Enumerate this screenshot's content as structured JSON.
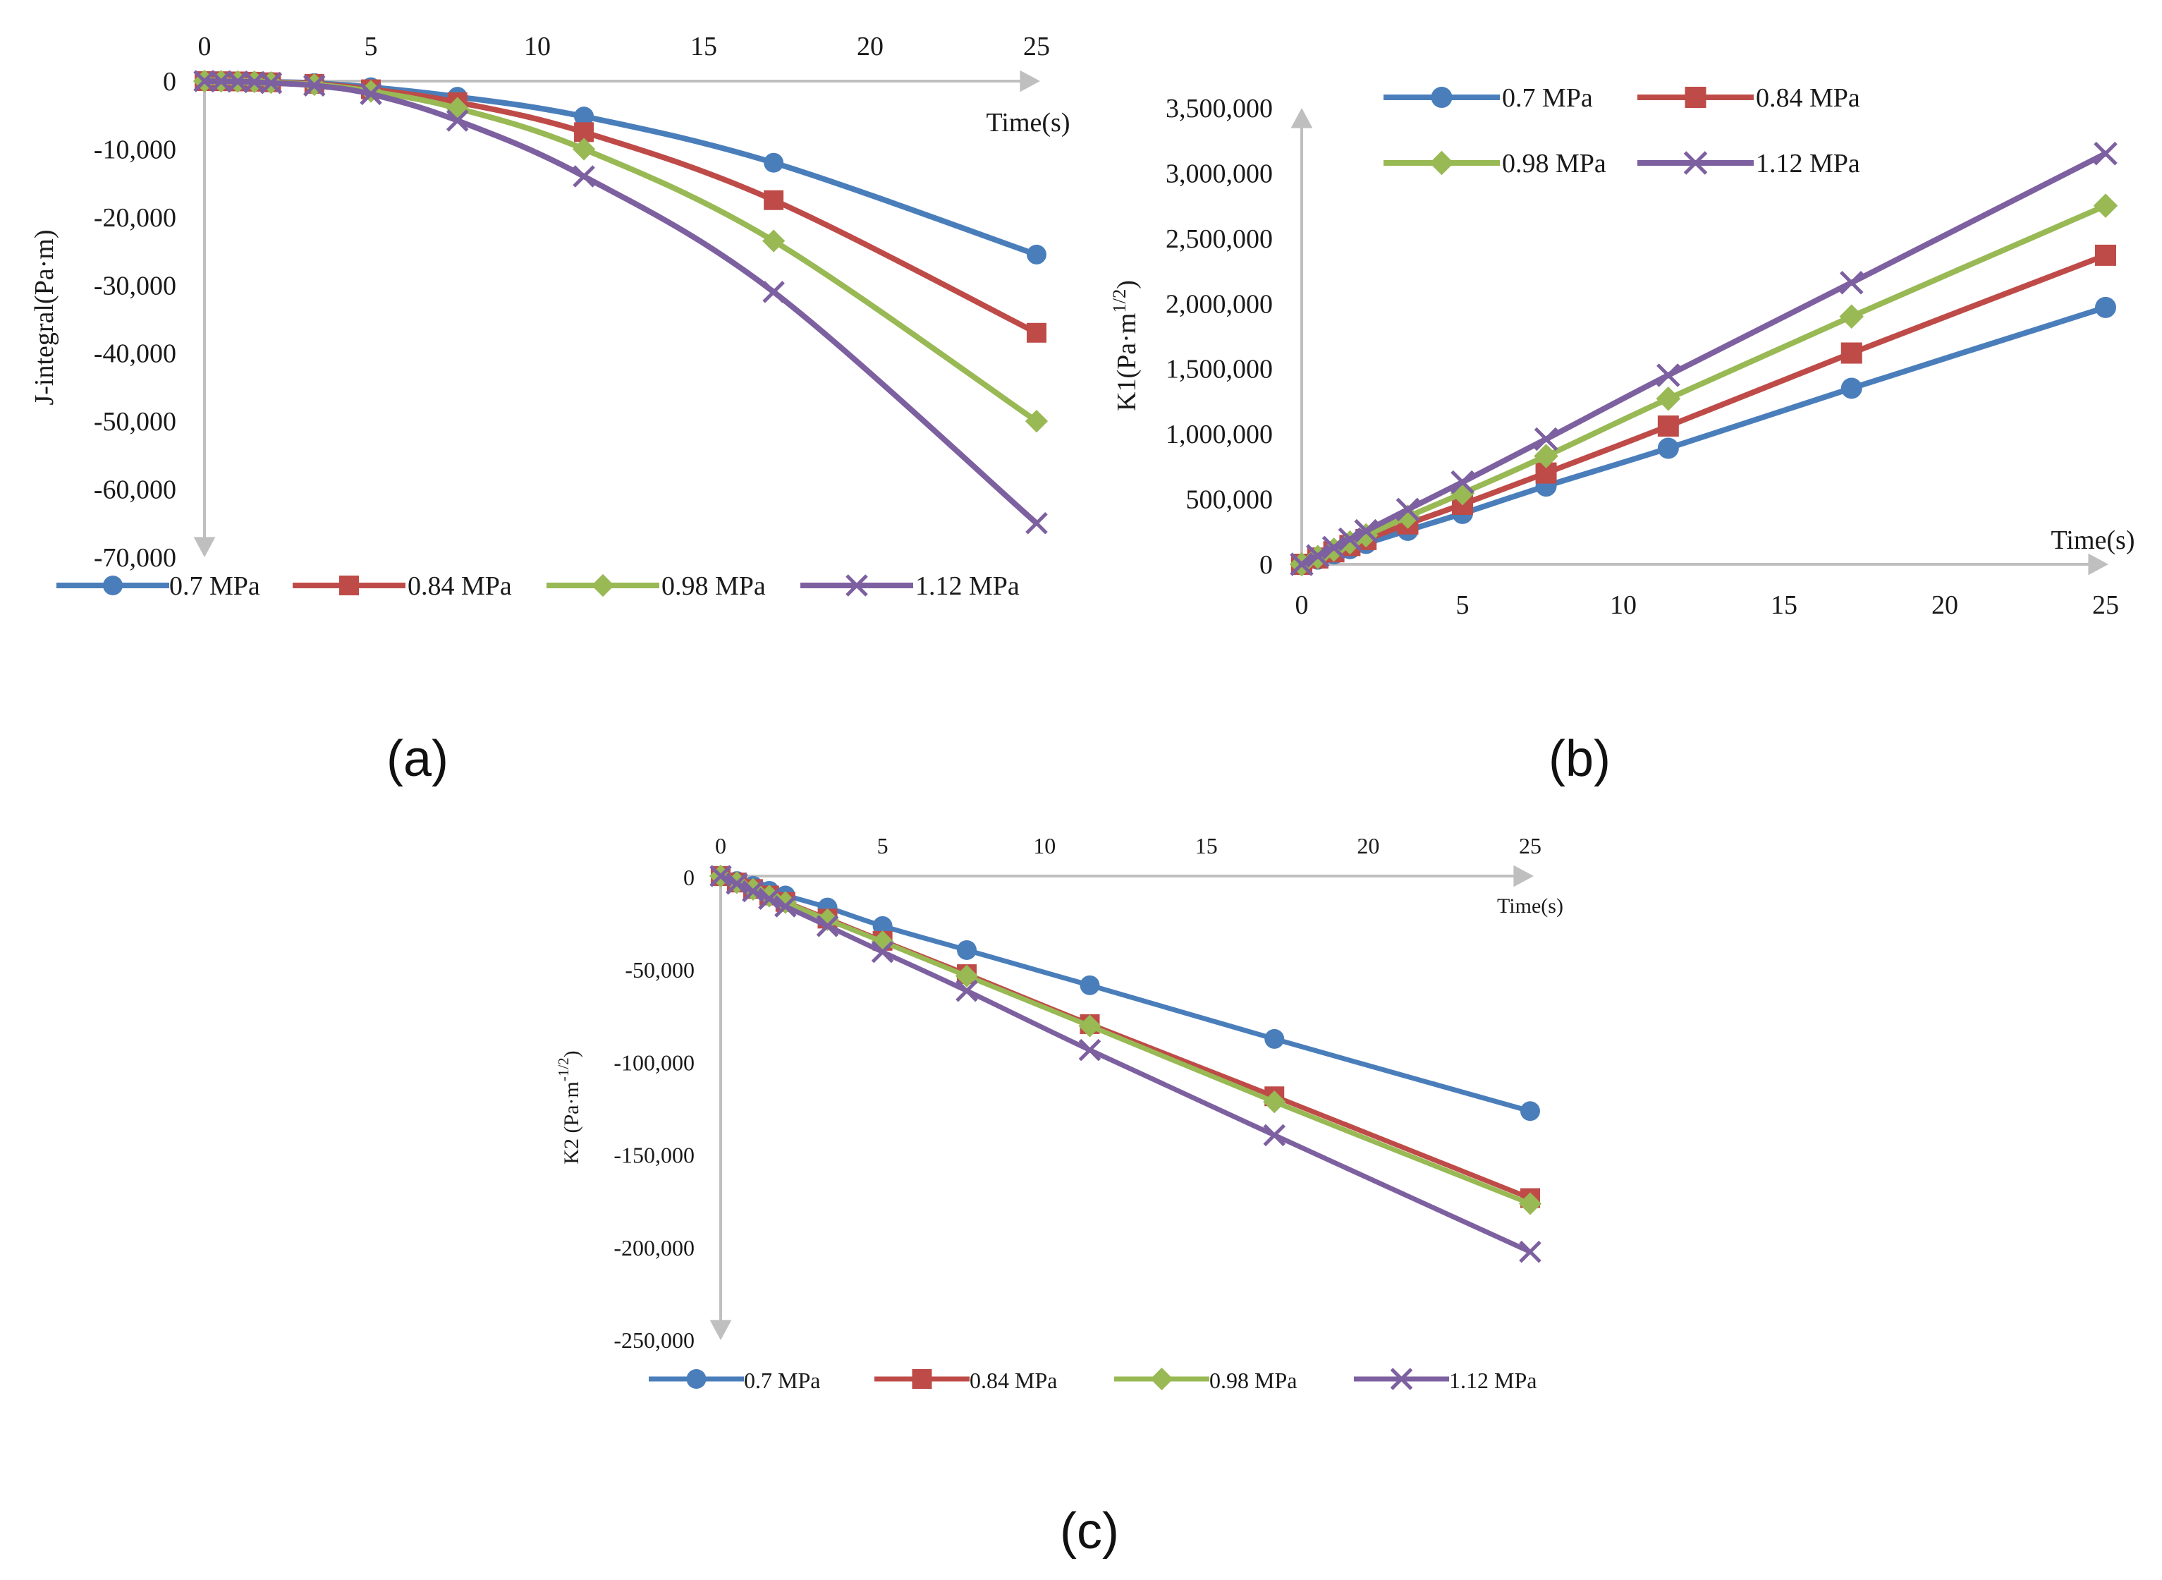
{
  "chart_data": [
    {
      "type": "line",
      "panel_label": "(a)",
      "xlabel": "Time(s)",
      "ylabel": "J-integral(Pa·m)",
      "xlim": [
        0,
        25
      ],
      "ylim": [
        -70000,
        0
      ],
      "x_ticks": [
        "0",
        "5",
        "10",
        "15",
        "20",
        "25"
      ],
      "y_ticks": [
        "0",
        "-10,000",
        "-20,000",
        "-30,000",
        "-40,000",
        "-50,000",
        "-60,000",
        "-70,000"
      ],
      "x_axis_position": "top",
      "legend_position": "bottom",
      "x": [
        0,
        0.5,
        1,
        1.5,
        2,
        3.3,
        5,
        7.6,
        11.4,
        17.1,
        25
      ],
      "series": [
        {
          "name": "0.7 MPa",
          "color": "#4a7ebb",
          "marker": "circle",
          "values": [
            0,
            -10,
            -30,
            -60,
            -120,
            -280,
            -900,
            -2300,
            -5200,
            -12000,
            -25500
          ]
        },
        {
          "name": "0.84 MPa",
          "color": "#be4b48",
          "marker": "square",
          "values": [
            0,
            -15,
            -45,
            -90,
            -170,
            -400,
            -1200,
            -3100,
            -7500,
            -17500,
            -37000
          ]
        },
        {
          "name": "0.98 MPa",
          "color": "#98b954",
          "marker": "diamond",
          "values": [
            0,
            -20,
            -60,
            -110,
            -220,
            -520,
            -1500,
            -4000,
            -10000,
            -23500,
            -50000
          ]
        },
        {
          "name": "1.12 MPa",
          "color": "#7d60a0",
          "marker": "x",
          "values": [
            0,
            -25,
            -70,
            -140,
            -280,
            -650,
            -1900,
            -5800,
            -14000,
            -31000,
            -65000
          ]
        }
      ]
    },
    {
      "type": "line",
      "panel_label": "(b)",
      "xlabel": "Time(s)",
      "ylabel": "K1(Pa·m",
      "ylabel_sup": "1/2",
      "ylabel_close": ")",
      "xlim": [
        0,
        25
      ],
      "ylim": [
        0,
        3500000
      ],
      "x_ticks": [
        "0",
        "5",
        "10",
        "15",
        "20",
        "25"
      ],
      "y_ticks": [
        "0",
        "500,000",
        "1,000,000",
        "1,500,000",
        "2,000,000",
        "2,500,000",
        "3,000,000",
        "3,500,000"
      ],
      "x_axis_position": "bottom",
      "legend_position": "top",
      "x": [
        0,
        0.5,
        1,
        1.5,
        2,
        3.3,
        5,
        7.6,
        11.4,
        17.1,
        25
      ],
      "series": [
        {
          "name": "0.7 MPa",
          "color": "#4a7ebb",
          "marker": "circle",
          "values": [
            0,
            40000,
            80000,
            120000,
            160000,
            260000,
            390000,
            600000,
            890000,
            1350000,
            1970000
          ]
        },
        {
          "name": "0.84 MPa",
          "color": "#be4b48",
          "marker": "square",
          "values": [
            0,
            48000,
            96000,
            144000,
            190000,
            310000,
            460000,
            700000,
            1060000,
            1620000,
            2370000
          ]
        },
        {
          "name": "0.98 MPa",
          "color": "#98b954",
          "marker": "diamond",
          "values": [
            0,
            56000,
            112000,
            168000,
            222000,
            365000,
            545000,
            830000,
            1270000,
            1900000,
            2750000
          ]
        },
        {
          "name": "1.12 MPa",
          "color": "#7d60a0",
          "marker": "x",
          "values": [
            0,
            64000,
            128000,
            192000,
            256000,
            420000,
            630000,
            960000,
            1450000,
            2160000,
            3150000
          ]
        }
      ]
    },
    {
      "type": "line",
      "panel_label": "(c)",
      "xlabel": "Time(s)",
      "ylabel": "K2 (Pa·m",
      "ylabel_sup": "-1/2",
      "ylabel_close": ")",
      "xlim": [
        0,
        25
      ],
      "ylim": [
        -250000,
        0
      ],
      "x_ticks": [
        "0",
        "5",
        "10",
        "15",
        "20",
        "25"
      ],
      "y_ticks": [
        "0",
        "-50,000",
        "-100,000",
        "-150,000",
        "-200,000",
        "-250,000"
      ],
      "x_axis_position": "top",
      "legend_position": "bottom",
      "x": [
        0,
        0.5,
        1,
        1.5,
        2,
        3.3,
        5,
        7.6,
        11.4,
        17.1,
        25
      ],
      "series": [
        {
          "name": "0.7 MPa",
          "color": "#4a7ebb",
          "marker": "circle",
          "values": [
            0,
            -2700,
            -5300,
            -8000,
            -10500,
            -17000,
            -27000,
            -40000,
            -59000,
            -88000,
            -127000
          ]
        },
        {
          "name": "0.84 MPa",
          "color": "#be4b48",
          "marker": "square",
          "values": [
            0,
            -3500,
            -7000,
            -10500,
            -14000,
            -23000,
            -35000,
            -53000,
            -80000,
            -119000,
            -174000
          ]
        },
        {
          "name": "0.98 MPa",
          "color": "#98b954",
          "marker": "diamond",
          "values": [
            0,
            -3600,
            -7200,
            -10800,
            -14300,
            -23600,
            -35500,
            -54000,
            -81000,
            -122000,
            -177000
          ]
        },
        {
          "name": "1.12 MPa",
          "color": "#7d60a0",
          "marker": "x",
          "values": [
            0,
            -4100,
            -8200,
            -12300,
            -16400,
            -27000,
            -41000,
            -62000,
            -94000,
            -140000,
            -203000
          ]
        }
      ]
    }
  ]
}
